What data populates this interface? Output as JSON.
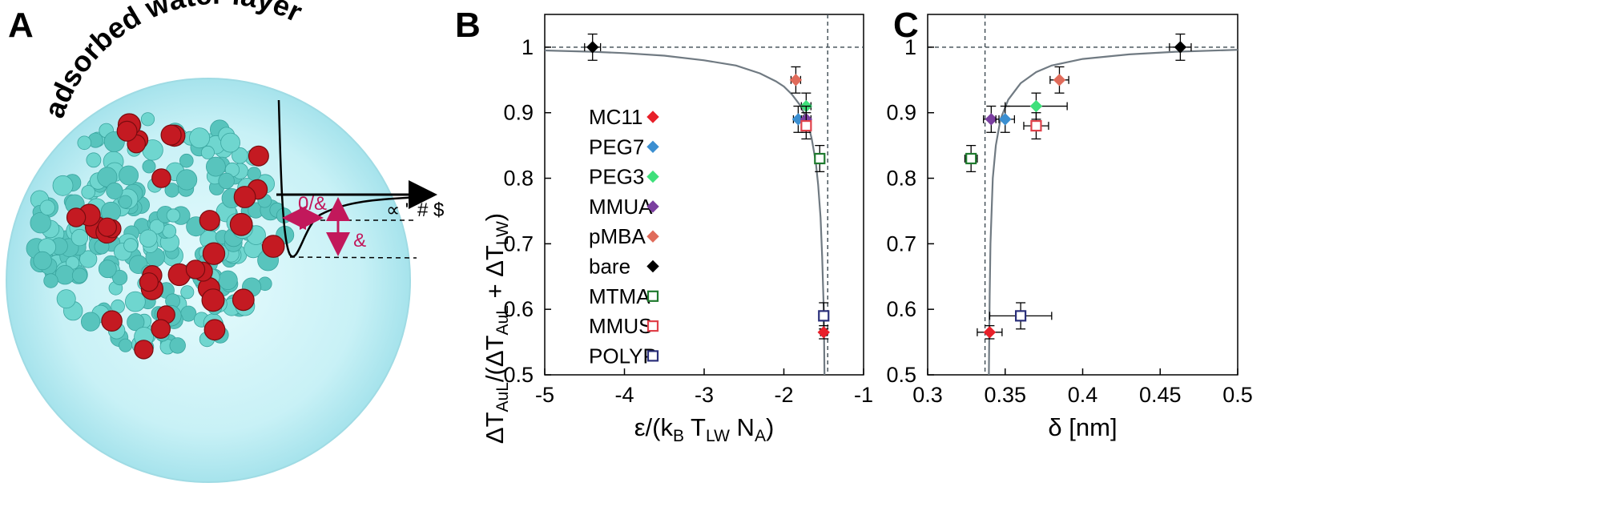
{
  "panels": {
    "A": {
      "letter": "A",
      "water_label": "adsorbed water layer",
      "anno_depth": "′ &",
      "anno_width": "0/&",
      "anno_tail": "∝ \" # $"
    },
    "B": {
      "letter": "B"
    },
    "C": {
      "letter": "C"
    }
  },
  "y_axis_title": {
    "main": "ΔT",
    "sub1": "AuL",
    "mid": "/(ΔT",
    "sub2": "AuL",
    "mid2": " + ΔT",
    "sub3": "LW",
    "end": ")"
  },
  "colors": {
    "MC11": "#e8202a",
    "PEG7": "#3b8fd1",
    "PEG3": "#3ee07a",
    "MMUA": "#7b3fa0",
    "pMBA": "#e06b5a",
    "bare": "#000000",
    "MTMA": "#1f7a2e",
    "MMUS": "#e0414a",
    "POLYP": "#2a2f7a",
    "fit": "#707a82",
    "dashed": "#3d4a52"
  },
  "chart_data": [
    {
      "type": "scatter",
      "panel": "B",
      "xlabel_parts": {
        "main": "ε/(k",
        "sub1": "B",
        "mid": " T",
        "sub2": "LW",
        "mid2": " N",
        "sub3": "A",
        "end": ")"
      },
      "xlim": [
        -5,
        -1
      ],
      "ylim": [
        0.5,
        1.05
      ],
      "x_ticks": [
        -5,
        -4,
        -3,
        -2,
        -1
      ],
      "x_tick_labels": [
        "-5",
        "-4",
        "-3",
        "-2",
        "-1"
      ],
      "y_ticks": [
        0.5,
        0.6,
        0.7,
        0.8,
        0.9,
        1.0
      ],
      "y_tick_labels": [
        "0.5",
        "0.6",
        "0.7",
        "0.8",
        "0.9",
        "1"
      ],
      "reference_lines": {
        "y": 1.0,
        "x": -1.45
      },
      "legend": {
        "placement": "center-left",
        "entries": [
          {
            "label": "MC11",
            "marker": "diamond-filled",
            "key": "MC11"
          },
          {
            "label": "PEG7",
            "marker": "diamond-filled",
            "key": "PEG7"
          },
          {
            "label": "PEG3",
            "marker": "diamond-filled",
            "key": "PEG3"
          },
          {
            "label": "MMUA",
            "marker": "diamond-filled",
            "key": "MMUA"
          },
          {
            "label": "pMBA",
            "marker": "diamond-filled",
            "key": "pMBA"
          },
          {
            "label": "bare",
            "marker": "diamond-filled",
            "key": "bare"
          },
          {
            "label": "MTMA",
            "marker": "square-open",
            "key": "MTMA"
          },
          {
            "label": "MMUS",
            "marker": "square-open",
            "key": "MMUS"
          },
          {
            "label": "POLYP",
            "marker": "square-open",
            "key": "POLYP"
          }
        ]
      },
      "points": [
        {
          "key": "bare",
          "marker": "diamond-filled",
          "x": -4.4,
          "y": 1.0,
          "xerr": 0.1,
          "yerr": 0.02
        },
        {
          "key": "pMBA",
          "marker": "diamond-filled",
          "x": -1.85,
          "y": 0.95,
          "xerr": 0.06,
          "yerr": 0.02
        },
        {
          "key": "PEG3",
          "marker": "diamond-filled",
          "x": -1.72,
          "y": 0.91,
          "xerr": 0.06,
          "yerr": 0.02
        },
        {
          "key": "PEG7",
          "marker": "diamond-filled",
          "x": -1.82,
          "y": 0.89,
          "xerr": 0.06,
          "yerr": 0.02
        },
        {
          "key": "MMUA",
          "marker": "diamond-filled",
          "x": -1.72,
          "y": 0.89,
          "xerr": 0.06,
          "yerr": 0.02
        },
        {
          "key": "MMUS",
          "marker": "square-open",
          "x": -1.72,
          "y": 0.88,
          "xerr": 0.06,
          "yerr": 0.02
        },
        {
          "key": "MTMA",
          "marker": "square-open",
          "x": -1.55,
          "y": 0.83,
          "xerr": 0.04,
          "yerr": 0.02
        },
        {
          "key": "POLYP",
          "marker": "square-open",
          "x": -1.5,
          "y": 0.59,
          "xerr": 0.04,
          "yerr": 0.02
        },
        {
          "key": "MC11",
          "marker": "diamond-filled",
          "x": -1.5,
          "y": 0.565,
          "xerr": 0.04,
          "yerr": 0.01
        }
      ],
      "fit_curve": [
        [
          -5,
          0.995
        ],
        [
          -4.4,
          0.993
        ],
        [
          -4,
          0.991
        ],
        [
          -3.5,
          0.987
        ],
        [
          -3,
          0.98
        ],
        [
          -2.6,
          0.972
        ],
        [
          -2.3,
          0.96
        ],
        [
          -2.1,
          0.948
        ],
        [
          -2.0,
          0.94
        ],
        [
          -1.9,
          0.928
        ],
        [
          -1.8,
          0.912
        ],
        [
          -1.75,
          0.9
        ],
        [
          -1.7,
          0.885
        ],
        [
          -1.65,
          0.86
        ],
        [
          -1.6,
          0.825
        ],
        [
          -1.57,
          0.79
        ],
        [
          -1.54,
          0.74
        ],
        [
          -1.52,
          0.68
        ],
        [
          -1.5,
          0.6
        ],
        [
          -1.49,
          0.5
        ]
      ]
    },
    {
      "type": "scatter",
      "panel": "C",
      "xlabel_parts": {
        "main": "δ [nm]"
      },
      "xlim": [
        0.3,
        0.5
      ],
      "ylim": [
        0.5,
        1.05
      ],
      "x_ticks": [
        0.3,
        0.35,
        0.4,
        0.45,
        0.5
      ],
      "x_tick_labels": [
        "0.3",
        "0.35",
        "0.4",
        "0.45",
        "0.5"
      ],
      "y_ticks": [
        0.5,
        0.6,
        0.7,
        0.8,
        0.9,
        1.0
      ],
      "y_tick_labels": [
        "0.5",
        "0.6",
        "0.7",
        "0.8",
        "0.9",
        "1"
      ],
      "reference_lines": {
        "y": 1.0,
        "x": 0.337
      },
      "points": [
        {
          "key": "bare",
          "marker": "diamond-filled",
          "x": 0.463,
          "y": 1.0,
          "xerr": 0.007,
          "yerr": 0.02
        },
        {
          "key": "pMBA",
          "marker": "diamond-filled",
          "x": 0.385,
          "y": 0.95,
          "xerr": 0.006,
          "yerr": 0.02
        },
        {
          "key": "PEG3",
          "marker": "diamond-filled",
          "x": 0.37,
          "y": 0.91,
          "xerr": 0.02,
          "yerr": 0.02
        },
        {
          "key": "MMUA",
          "marker": "diamond-filled",
          "x": 0.341,
          "y": 0.89,
          "xerr": 0.005,
          "yerr": 0.02
        },
        {
          "key": "PEG7",
          "marker": "diamond-filled",
          "x": 0.35,
          "y": 0.89,
          "xerr": 0.006,
          "yerr": 0.02
        },
        {
          "key": "MMUS",
          "marker": "square-open",
          "x": 0.37,
          "y": 0.88,
          "xerr": 0.008,
          "yerr": 0.02
        },
        {
          "key": "MTMA",
          "marker": "square-open",
          "x": 0.328,
          "y": 0.83,
          "xerr": 0.004,
          "yerr": 0.02
        },
        {
          "key": "POLYP",
          "marker": "square-open",
          "x": 0.36,
          "y": 0.59,
          "xerr": 0.02,
          "yerr": 0.02
        },
        {
          "key": "MC11",
          "marker": "diamond-filled",
          "x": 0.34,
          "y": 0.565,
          "xerr": 0.008,
          "yerr": 0.01
        }
      ],
      "fit_curve": [
        [
          0.3395,
          0.5
        ],
        [
          0.34,
          0.62
        ],
        [
          0.3405,
          0.7
        ],
        [
          0.342,
          0.8
        ],
        [
          0.344,
          0.85
        ],
        [
          0.347,
          0.89
        ],
        [
          0.352,
          0.92
        ],
        [
          0.36,
          0.945
        ],
        [
          0.37,
          0.962
        ],
        [
          0.38,
          0.972
        ],
        [
          0.4,
          0.982
        ],
        [
          0.43,
          0.989
        ],
        [
          0.46,
          0.993
        ],
        [
          0.5,
          0.996
        ]
      ]
    }
  ]
}
